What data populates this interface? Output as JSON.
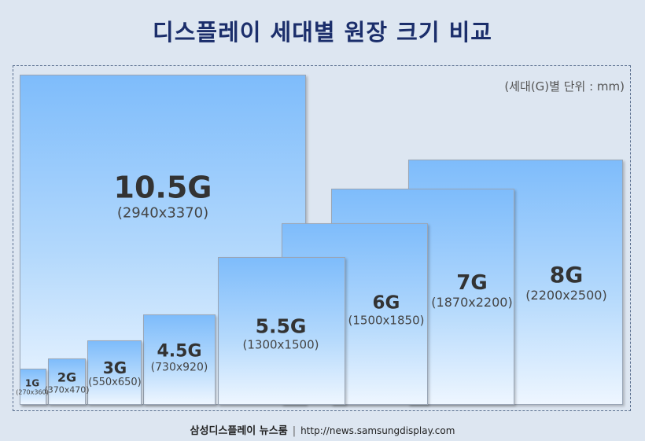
{
  "title": "디스플레이 세대별 원장 크기 비교",
  "unit_note": "(세대(G)별 단위 : mm)",
  "generations": [
    {
      "gen": "1G",
      "size": "(270x360)"
    },
    {
      "gen": "2G",
      "size": "(370x470)"
    },
    {
      "gen": "3G",
      "size": "(550x650)"
    },
    {
      "gen": "4.5G",
      "size": "(730x920)"
    },
    {
      "gen": "5.5G",
      "size": "(1300x1500)"
    },
    {
      "gen": "6G",
      "size": "(1500x1850)"
    },
    {
      "gen": "7G",
      "size": "(1870x2200)"
    },
    {
      "gen": "8G",
      "size": "(2200x2500)"
    },
    {
      "gen": "10.5G",
      "size": "(2940x3370)"
    }
  ],
  "footer": {
    "brand": "삼성디스플레이 뉴스룸",
    "separator": "|",
    "url": "http://news.samsungdisplay.com"
  }
}
